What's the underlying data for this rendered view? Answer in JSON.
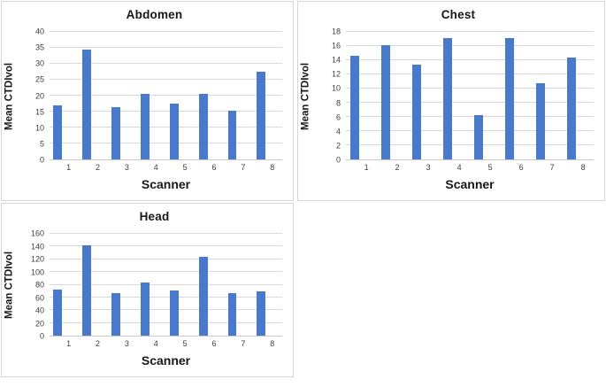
{
  "colors": {
    "bar": "#4879ca",
    "gridline": "#d9d9d9",
    "axis_line": "#c9c9c9",
    "panel_border": "#d6d6d6",
    "title_text": "#171717",
    "tick_text": "#3d3d3d",
    "background": "#ffffff"
  },
  "chart_data": [
    {
      "type": "bar",
      "title": "Abdomen",
      "ylabel": "Mean CTDIvol",
      "xlabel": "Scanner",
      "categories": [
        "1",
        "2",
        "3",
        "4",
        "5",
        "6",
        "7",
        "8"
      ],
      "values": [
        17,
        34.4,
        16.4,
        20.6,
        17.4,
        20.5,
        15.2,
        27.4
      ],
      "ylim": [
        0,
        40
      ],
      "ytick_step": 5,
      "grid": true,
      "legend": "none"
    },
    {
      "type": "bar",
      "title": "Chest",
      "ylabel": "Mean CTDIvol",
      "xlabel": "Scanner",
      "categories": [
        "1",
        "2",
        "3",
        "4",
        "5",
        "6",
        "7",
        "8"
      ],
      "values": [
        14.6,
        16.1,
        13.4,
        17.1,
        6.3,
        17.1,
        10.8,
        14.4
      ],
      "ylim": [
        0,
        18
      ],
      "ytick_step": 2,
      "grid": true,
      "legend": "none"
    },
    {
      "type": "bar",
      "title": "Head",
      "ylabel": "Mean CTDIvol",
      "xlabel": "Scanner",
      "categories": [
        "1",
        "2",
        "3",
        "4",
        "5",
        "6",
        "7",
        "8"
      ],
      "values": [
        72,
        142,
        67,
        84,
        71,
        124,
        67,
        70
      ],
      "ylim": [
        0,
        160
      ],
      "ytick_step": 20,
      "grid": true,
      "legend": "none"
    }
  ]
}
